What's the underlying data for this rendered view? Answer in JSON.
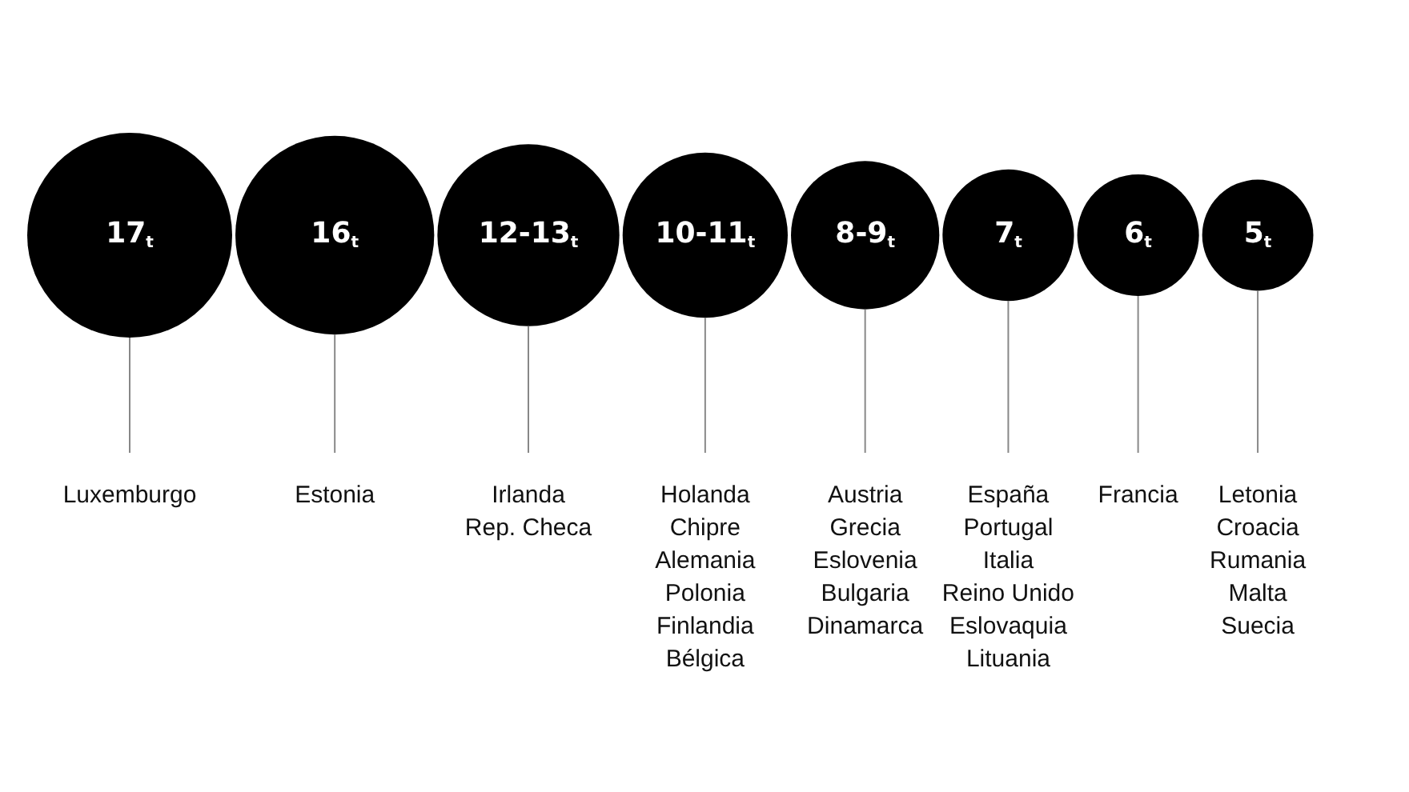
{
  "chart_data": {
    "type": "other",
    "categories": [
      "Luxemburgo",
      "Estonia",
      "Irlanda\nRep. Checa",
      "Holanda\nChipre\nAlemania\nPolonia\nFinlandia\nBélgica",
      "Austria\nGrecia\nEslovenia\nBulgaria\nDinamarca",
      "España\nPortugal\nItalia\nReino Unido\nEslovaquia\nLituania",
      "Francia",
      "Letonia\nCroacia\nRumania\nMalta\nSuecia"
    ],
    "value_labels": [
      "17$_{t}$",
      "16$_{t}$",
      "12-13$_{t}$",
      "10-11$_{t}$",
      "8-9$_{t}$",
      "7$_{t}$",
      "6$_{t}$",
      "5$_{t}$"
    ],
    "values": [
      17,
      16,
      null,
      null,
      null,
      7,
      6,
      5
    ],
    "color": "#000000"
  }
}
